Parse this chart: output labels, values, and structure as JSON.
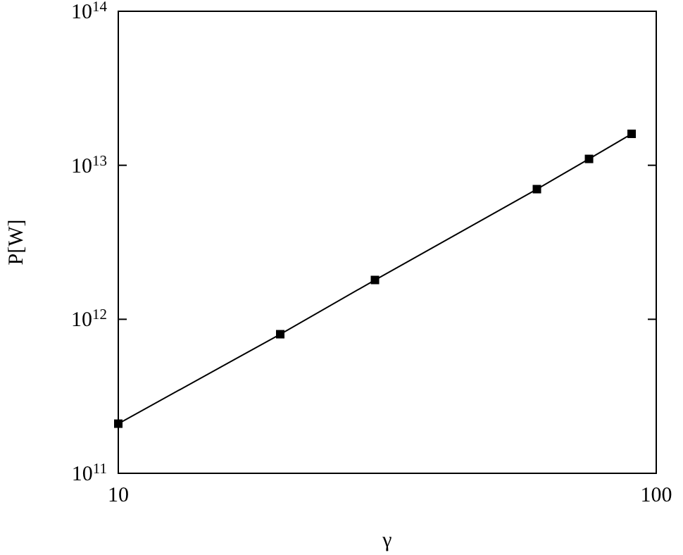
{
  "chart_data": {
    "type": "line",
    "xlabel": "γ",
    "ylabel": "P[W]",
    "log": "xy",
    "marker": "square",
    "line_style": "solid",
    "grid": false,
    "xlim": [
      10,
      100
    ],
    "xticks": [
      10,
      100
    ],
    "ylim": [
      100000000000.0,
      100000000000000.0
    ],
    "yticks": [
      {
        "value": 100000000000.0,
        "label": "10$^{11}$"
      },
      {
        "value": 1000000000000.0,
        "label": "10$^{12}$"
      },
      {
        "value": 10000000000000.0,
        "label": "10$^{13}$"
      },
      {
        "value": 100000000000000.0,
        "label": "10$^{14}$"
      }
    ],
    "x": [
      10,
      20,
      30,
      60,
      75,
      90
    ],
    "series": [
      {
        "color": "#000000",
        "values": [
          210000000000.0,
          800000000000.0,
          1800000000000.0,
          7000000000000.0,
          11000000000000.0,
          16000000000000.0
        ]
      }
    ]
  }
}
